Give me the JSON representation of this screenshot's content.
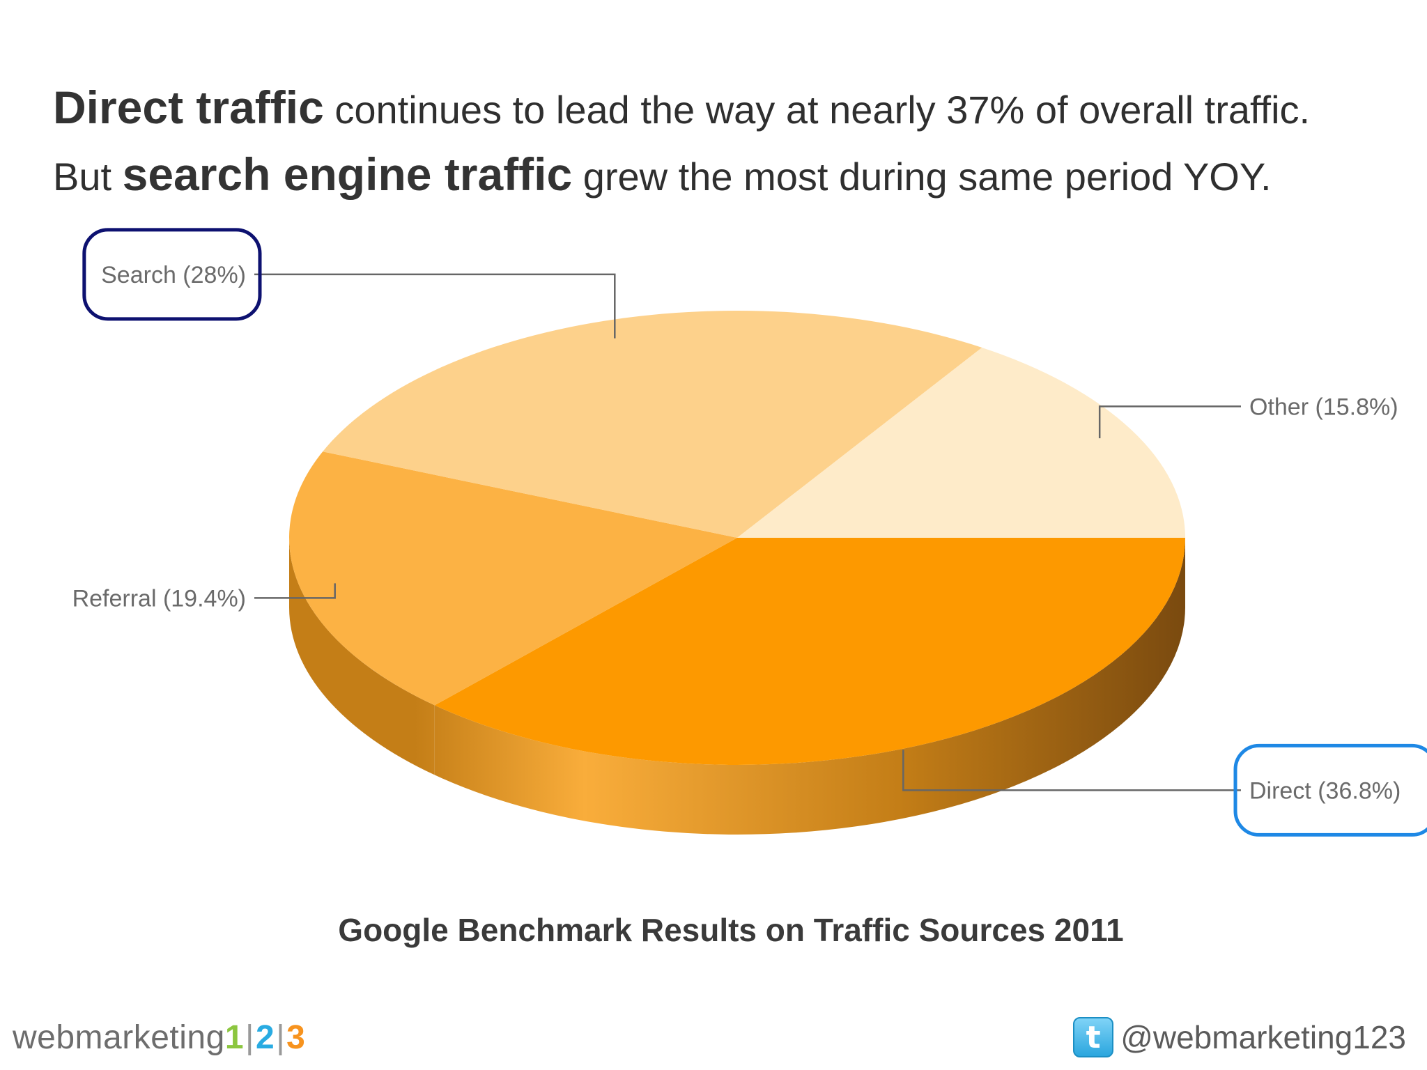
{
  "headline": {
    "line1": {
      "bold": "Direct traffic",
      "rest": " continues to lead the way at nearly 37% of overall traffic."
    },
    "line2": {
      "lead": "But ",
      "bold": "search engine traffic",
      "rest": " grew the most during same period YOY."
    }
  },
  "chart_data": {
    "type": "pie",
    "style": "3d",
    "title": "Google Benchmark Results on Traffic Sources 2011",
    "slices": [
      {
        "label": "Direct (36.8%)",
        "value": 36.8,
        "color": "#fd9900",
        "highlight": "#1e88e5"
      },
      {
        "label": "Referral (19.4%)",
        "value": 19.4,
        "color": "#fcb244",
        "highlight": ""
      },
      {
        "label": "Search (28%)",
        "value": 28,
        "color": "#fdd18b",
        "highlight": "#0d1170"
      },
      {
        "label": "Other (15.8%)",
        "value": 15.8,
        "color": "#feebc9",
        "highlight": ""
      }
    ]
  },
  "footer": {
    "brand_text": "webmarketing",
    "brand_digits": [
      "1",
      "2",
      "3"
    ],
    "brand_sep": "|",
    "twitter_glyph": "t",
    "twitter_handle": "@webmarketing123"
  },
  "colors": {
    "side_dark": "#7a4a0f",
    "side_mid": "#c47e17",
    "side_light": "#f9ad3b",
    "leader": "#666666",
    "label": "#6a6a6a"
  }
}
